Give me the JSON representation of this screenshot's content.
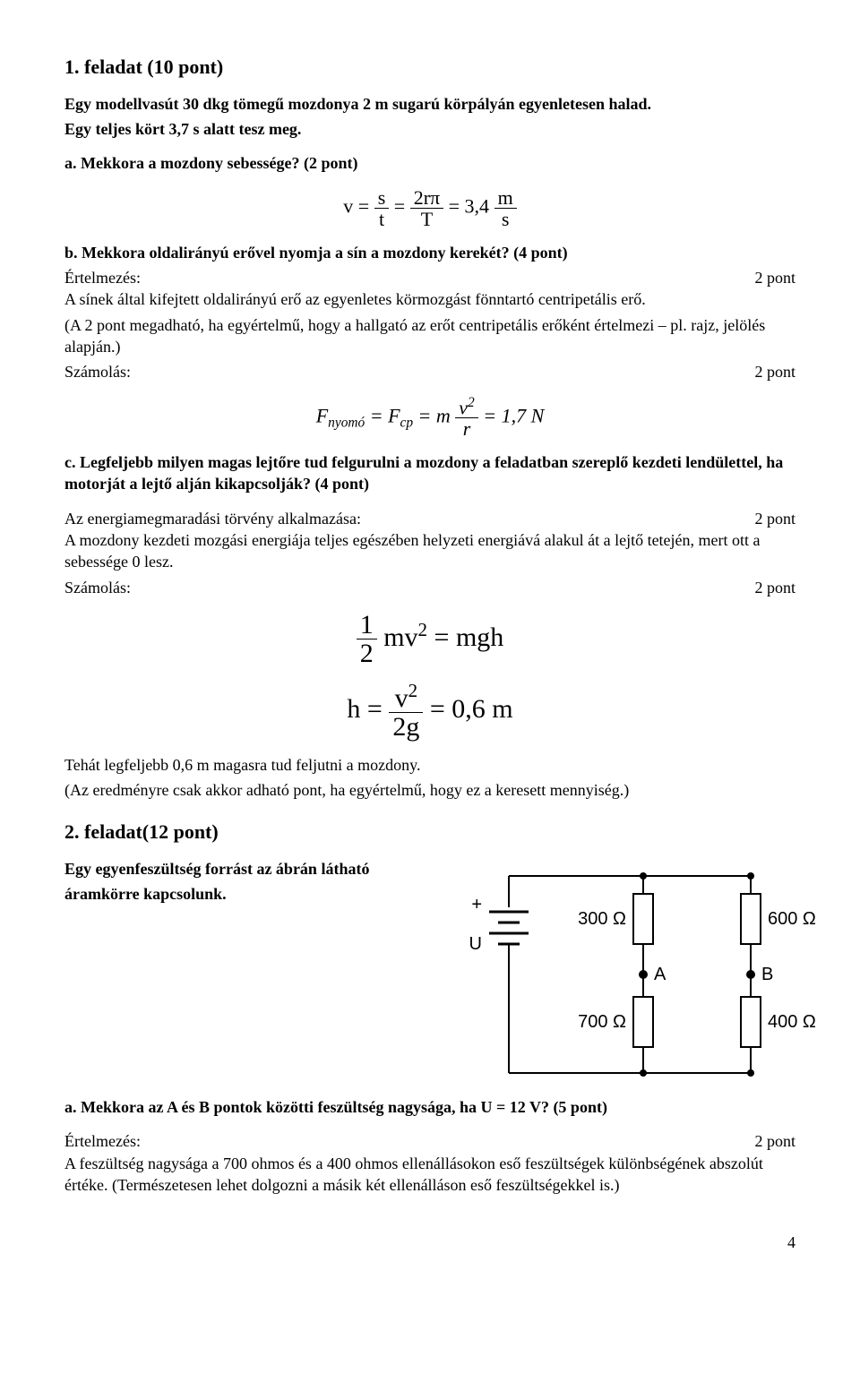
{
  "task1": {
    "title": "1. feladat (10 pont)",
    "intro1": "Egy modellvasút 30 dkg tömegű mozdonya 2 m sugarú körpályán egyenletesen halad.",
    "intro2": "Egy teljes kört 3,7 s alatt tesz meg.",
    "a_q": "a. Mekkora a mozdony sebessége? (2 pont)",
    "a_formula": {
      "lhs": "v =",
      "f1n": "s",
      "f1d": "t",
      "eq1": "=",
      "f2n": "2rπ",
      "f2d": "T",
      "eq2": "= 3,4",
      "u_n": "m",
      "u_d": "s"
    },
    "b_q": "b. Mekkora oldalirányú erővel nyomja a sín a mozdony kerekét? (4 pont)",
    "b_ertelmezes_l": "Értelmezés:",
    "b_ertelmezes_r": "2 pont",
    "b_line1": "A sínek által kifejtett oldalirányú erő az egyenletes körmozgást fönntartó centripetális erő.",
    "b_line2": "(A 2 pont megadható, ha egyértelmű, hogy a hallgató az erőt centripetális erőként értelmezi – pl. rajz, jelölés alapján.)",
    "b_szamolas_l": "Számolás:",
    "b_szamolas_r": "2 pont",
    "b_formula": {
      "pre": "F",
      "sub1": "nyomó",
      "mid1": " = F",
      "sub2": "cp",
      "mid2": " = m",
      "fn": "v",
      "fd": "r",
      "post": "= 1,7 N"
    },
    "c_q": "c. Legfeljebb milyen magas lejtőre tud felgurulni a mozdony a feladatban szereplő kezdeti lendülettel, ha motorját a lejtő alján kikapcsolják? (4 pont)",
    "c_en_l": "Az energiamegmaradási törvény alkalmazása:",
    "c_en_r": "2 pont",
    "c_line1": "A mozdony kezdeti mozgási energiája teljes egészében helyzeti energiává alakul át a lejtő tetején, mert ott a sebessége 0 lesz.",
    "c_szam_l": "Számolás:",
    "c_szam_r": "2 pont",
    "c_f1": {
      "fn": "1",
      "fd": "2",
      "rest": "mv",
      "exp": "2",
      "eq": " = mgh"
    },
    "c_f2": {
      "lhs": "h =",
      "fn": "v",
      "fd": "2g",
      "post": "= 0,6 m"
    },
    "c_concl1": "Tehát legfeljebb 0,6 m magasra tud feljutni a mozdony.",
    "c_concl2": "(Az eredményre csak akkor adható pont, ha egyértelmű, hogy ez a keresett mennyiség.)"
  },
  "task2": {
    "title": "2. feladat(12 pont)",
    "intro1": "Egy egyenfeszültség forrást az ábrán látható",
    "intro2": "áramkörre kapcsolunk.",
    "circuit": {
      "r_tl": "300 Ω",
      "r_tr": "600 Ω",
      "r_bl": "700 Ω",
      "r_br": "400 Ω",
      "A": "A",
      "B": "B",
      "U": "U",
      "plus": "+",
      "wire_color": "#000000",
      "bg": "#ffffff",
      "font_family": "Arial, Helvetica, sans-serif",
      "label_fontsize": 20
    },
    "a_q": "a. Mekkora az A és B pontok közötti feszültség nagysága, ha U = 12 V? (5 pont)",
    "a_ert_l": "Értelmezés:",
    "a_ert_r": "2 pont",
    "a_line": "A feszültség nagysága a 700 ohmos és a 400 ohmos ellenállásokon eső feszültségek különbségének abszolút értéke. (Természetesen lehet dolgozni a másik két ellenálláson eső feszültségekkel is.)"
  },
  "pagenum": "4"
}
